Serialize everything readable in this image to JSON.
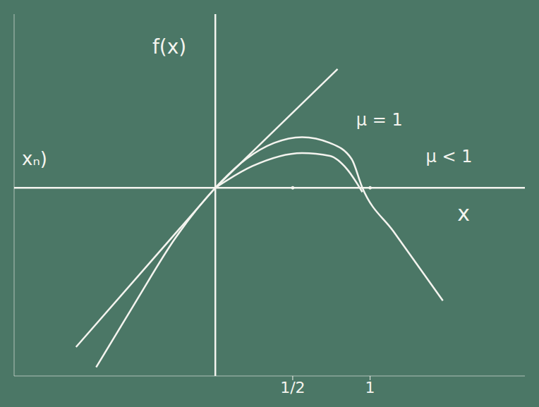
{
  "chart_data": {
    "type": "line",
    "xlabel": "x",
    "ylabel": "f(x)",
    "annotations": [
      "xₙ)"
    ],
    "xlim": [
      -1.3,
      2.0
    ],
    "ylim": [
      -1.3,
      1.2
    ],
    "xticks": [
      {
        "value": 0.5,
        "label": "1/2"
      },
      {
        "value": 1,
        "label": "1"
      }
    ],
    "yticks": [],
    "tick_labels": "x",
    "grid": false,
    "series": [
      {
        "color": "#f4f4ef",
        "x": [
          -0.9,
          0,
          0.79
        ],
        "values": [
          -1.1,
          0,
          0.82
        ]
      },
      {
        "name": "μ = 1",
        "color": "#f4f4ef",
        "x": [
          -0.77,
          -0.51,
          -0.26,
          0,
          0.2,
          0.38,
          0.56,
          0.74,
          0.88,
          0.95,
          1.15,
          1.47
        ],
        "values": [
          -1.24,
          -0.78,
          -0.35,
          0,
          0.2,
          0.31,
          0.35,
          0.31,
          0.2,
          0,
          -0.3,
          -0.78
        ]
      },
      {
        "name": "μ < 1",
        "color": "#f4f4ef",
        "x": [
          0,
          0.24,
          0.56,
          0.74,
          0.85,
          0.95
        ],
        "values": [
          0,
          0.15,
          0.24,
          0.22,
          0.13,
          -0.03
        ]
      }
    ]
  }
}
